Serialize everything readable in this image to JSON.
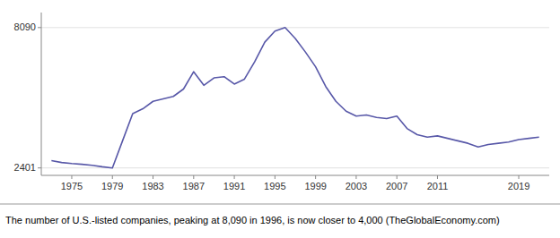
{
  "chart_data": {
    "type": "line",
    "caption": "The number of U.S.-listed companies, peaking at 8,090 in 1996, is now closer to 4,000 (TheGlobalEconomy.com)",
    "x": [
      1973,
      1974,
      1975,
      1976,
      1977,
      1978,
      1979,
      1980,
      1981,
      1982,
      1983,
      1984,
      1985,
      1986,
      1987,
      1988,
      1989,
      1990,
      1991,
      1992,
      1993,
      1994,
      1995,
      1996,
      1997,
      1998,
      1999,
      2000,
      2001,
      2002,
      2003,
      2004,
      2005,
      2006,
      2007,
      2008,
      2009,
      2010,
      2011,
      2012,
      2013,
      2014,
      2015,
      2016,
      2017,
      2018,
      2019,
      2020,
      2021
    ],
    "values": [
      2700,
      2620,
      2580,
      2550,
      2510,
      2450,
      2401,
      3500,
      4600,
      4800,
      5100,
      5200,
      5300,
      5600,
      6300,
      5750,
      6050,
      6100,
      5800,
      6000,
      6700,
      7500,
      7950,
      8090,
      7650,
      7100,
      6500,
      5700,
      5100,
      4700,
      4500,
      4550,
      4450,
      4400,
      4500,
      4000,
      3750,
      3650,
      3700,
      3600,
      3500,
      3400,
      3250,
      3350,
      3400,
      3450,
      3550,
      3600,
      3650
    ],
    "color": "#5858a8",
    "xlim": [
      1972,
      2022
    ],
    "ylim": [
      2100,
      8700
    ],
    "xticks": [
      1975,
      1979,
      1983,
      1987,
      1991,
      1995,
      1999,
      2003,
      2007,
      2011,
      2019
    ],
    "yticks": [
      2401,
      8090
    ],
    "grid": true
  }
}
